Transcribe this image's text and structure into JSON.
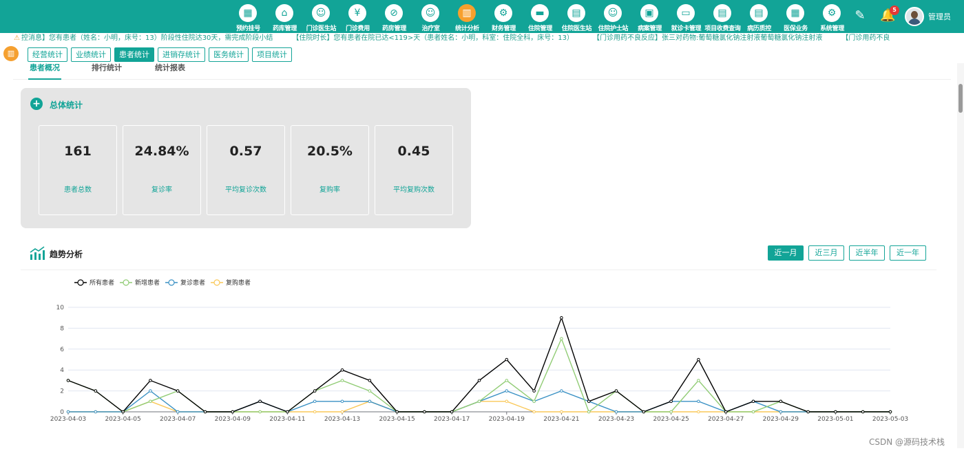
{
  "nav": [
    {
      "label": "预约挂号",
      "icon": "calendar-icon",
      "glyph": "▦"
    },
    {
      "label": "药库管理",
      "icon": "warehouse-icon",
      "glyph": "⌂"
    },
    {
      "label": "门诊医生站",
      "icon": "doctor-icon",
      "glyph": "☺"
    },
    {
      "label": "门诊费用",
      "icon": "yen-icon",
      "glyph": "¥"
    },
    {
      "label": "药房管理",
      "icon": "pill-icon",
      "glyph": "⊘"
    },
    {
      "label": "治疗室",
      "icon": "nurse-icon",
      "glyph": "☺"
    },
    {
      "label": "统计分析",
      "icon": "bar-chart-icon",
      "glyph": "▥"
    },
    {
      "label": "财务管理",
      "icon": "gear-icon",
      "glyph": "⚙"
    },
    {
      "label": "住院管理",
      "icon": "bed-icon",
      "glyph": "▬"
    },
    {
      "label": "住院医生站",
      "icon": "id-card-icon",
      "glyph": "▤"
    },
    {
      "label": "住院护士站",
      "icon": "nurse-station-icon",
      "glyph": "☺"
    },
    {
      "label": "病案管理",
      "icon": "folder-icon",
      "glyph": "▣"
    },
    {
      "label": "就诊卡管理",
      "icon": "card-icon",
      "glyph": "▭"
    },
    {
      "label": "项目收费查询",
      "icon": "receipt-icon",
      "glyph": "▤"
    },
    {
      "label": "病历质控",
      "icon": "record-icon",
      "glyph": "▤"
    },
    {
      "label": "医保业务",
      "icon": "insurance-icon",
      "glyph": "▦"
    },
    {
      "label": "系统管理",
      "icon": "settings-icon",
      "glyph": "⚙"
    }
  ],
  "nav_active_index": 6,
  "user": {
    "name": "管理员",
    "notifications": "5"
  },
  "marquee": [
    "控消息】您有患者（姓名：小明，床号：13）阶段性住院达30天，需完成阶段小结",
    "【住院时长】您有患者在院已达<119>天（患者姓名：小明，科室：住院全科，床号：13）",
    "【门诊用药不良反应】张三对药物:葡萄糖氯化钠注射液葡萄糖氯化钠注射液",
    "【门诊用药不良"
  ],
  "stat_tabs": [
    {
      "label": "经营统计",
      "active": false
    },
    {
      "label": "业绩统计",
      "active": false
    },
    {
      "label": "患者统计",
      "active": true
    },
    {
      "label": "进销存统计",
      "active": false
    },
    {
      "label": "医务统计",
      "active": false
    },
    {
      "label": "项目统计",
      "active": false
    }
  ],
  "sub_tabs": [
    {
      "label": "患者概况",
      "active": true
    },
    {
      "label": "排行统计",
      "active": false
    },
    {
      "label": "统计报表",
      "active": false
    }
  ],
  "overview": {
    "title": "总体统计",
    "cards": [
      {
        "value": "161",
        "label": "患者总数"
      },
      {
        "value": "24.84%",
        "label": "复诊率"
      },
      {
        "value": "0.57",
        "label": "平均复诊次数"
      },
      {
        "value": "20.5%",
        "label": "复购率"
      },
      {
        "value": "0.45",
        "label": "平均复购次数"
      }
    ]
  },
  "trend": {
    "title": "趋势分析",
    "ranges": [
      {
        "label": "近一月",
        "active": true
      },
      {
        "label": "近三月",
        "active": false
      },
      {
        "label": "近半年",
        "active": false
      },
      {
        "label": "近一年",
        "active": false
      }
    ]
  },
  "chart_data": {
    "type": "line",
    "x": [
      "2023-04-03",
      "2023-04-04",
      "2023-04-05",
      "2023-04-06",
      "2023-04-07",
      "2023-04-08",
      "2023-04-09",
      "2023-04-10",
      "2023-04-11",
      "2023-04-12",
      "2023-04-13",
      "2023-04-14",
      "2023-04-15",
      "2023-04-16",
      "2023-04-17",
      "2023-04-18",
      "2023-04-19",
      "2023-04-20",
      "2023-04-21",
      "2023-04-22",
      "2023-04-23",
      "2023-04-24",
      "2023-04-25",
      "2023-04-26",
      "2023-04-27",
      "2023-04-28",
      "2023-04-29",
      "2023-04-30",
      "2023-05-01",
      "2023-05-02",
      "2023-05-03"
    ],
    "x_tick_labels": [
      "2023-04-03",
      "2023-04-05",
      "2023-04-07",
      "2023-04-09",
      "2023-04-11",
      "2023-04-13",
      "2023-04-15",
      "2023-04-17",
      "2023-04-19",
      "2023-04-21",
      "2023-04-23",
      "2023-04-25",
      "2023-04-27",
      "2023-04-29",
      "2023-05-01",
      "2023-05-03"
    ],
    "ylim": [
      0,
      10
    ],
    "yticks": [
      0,
      2,
      4,
      6,
      8,
      10
    ],
    "grid": true,
    "legend_position": "top-left",
    "series": [
      {
        "name": "所有患者",
        "color": "#000000",
        "values": [
          3,
          2,
          0,
          3,
          2,
          0,
          0,
          1,
          0,
          2,
          4,
          3,
          0,
          0,
          0,
          3,
          5,
          2,
          9,
          1,
          2,
          0,
          1,
          5,
          0,
          1,
          1,
          0,
          0,
          0,
          0
        ]
      },
      {
        "name": "新增患者",
        "color": "#91cc75",
        "values": [
          3,
          2,
          0,
          1,
          2,
          0,
          0,
          0,
          0,
          2,
          3,
          2,
          0,
          0,
          0,
          1,
          3,
          1,
          7,
          0,
          2,
          0,
          0,
          3,
          0,
          0,
          1,
          0,
          0,
          0,
          0
        ]
      },
      {
        "name": "复诊患者",
        "color": "#3a91c4",
        "values": [
          0,
          0,
          0,
          2,
          0,
          0,
          0,
          1,
          0,
          1,
          1,
          1,
          0,
          0,
          0,
          1,
          2,
          1,
          2,
          1,
          0,
          0,
          1,
          1,
          0,
          1,
          0,
          0,
          0,
          0,
          0
        ]
      },
      {
        "name": "复购患者",
        "color": "#fac858",
        "values": [
          0,
          0,
          0,
          1,
          0,
          0,
          0,
          0,
          0,
          0,
          0,
          1,
          0,
          0,
          0,
          1,
          1,
          0,
          0,
          0,
          0,
          0,
          0,
          0,
          0,
          0,
          0,
          0,
          0,
          0,
          0
        ]
      }
    ]
  },
  "watermark": "CSDN @源码技术栈"
}
